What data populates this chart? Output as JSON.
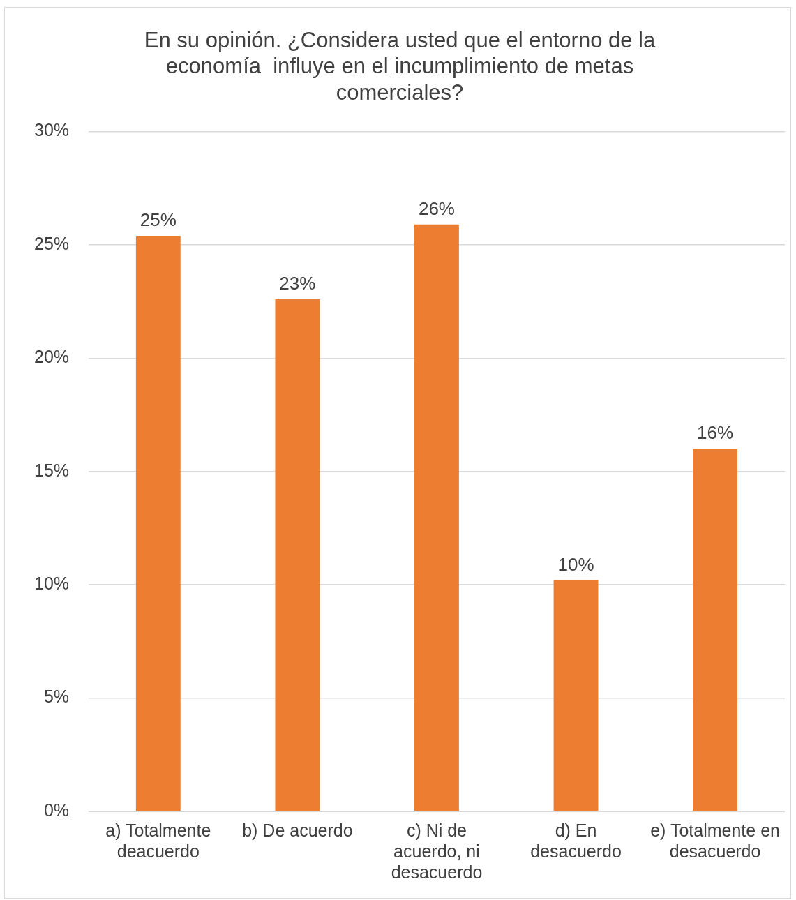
{
  "chart_data": {
    "type": "bar",
    "title": "En su opinión. ¿Considera usted que el entorno de la economía  influye en el incumplimiento de metas comerciales?",
    "categories": [
      "a) Totalmente deacuerdo",
      "b) De acuerdo",
      "c) Ni de acuerdo, ni desacuerdo",
      "d) En desacuerdo",
      "e) Totalmente en desacuerdo"
    ],
    "values": [
      25.4,
      22.6,
      25.9,
      10.2,
      16
    ],
    "value_labels": [
      "25%",
      "23%",
      "26%",
      "10%",
      "16%"
    ],
    "color": "#ed7d31",
    "ylim": [
      0,
      30
    ],
    "yticks": [
      {
        "value": 0,
        "label": "0%"
      },
      {
        "value": 5,
        "label": "5%"
      },
      {
        "value": 10,
        "label": "10%"
      },
      {
        "value": 15,
        "label": "15%"
      },
      {
        "value": 20,
        "label": "20%"
      },
      {
        "value": 25,
        "label": "25%"
      },
      {
        "value": 30,
        "label": "30%"
      }
    ],
    "grid": "y",
    "legend": false
  }
}
